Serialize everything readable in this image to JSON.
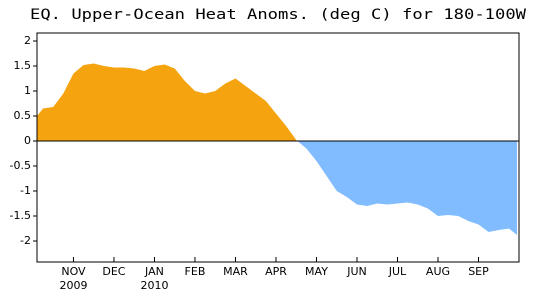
{
  "chart_data": {
    "type": "area",
    "title": "EQ. Upper-Ocean Heat Anoms. (deg C) for 180-100W",
    "positive_color": "#f5a30f",
    "negative_color": "#80bcff",
    "x": [
      0.1,
      0.25,
      0.5,
      0.75,
      1.0,
      1.25,
      1.5,
      1.75,
      2.0,
      2.25,
      2.5,
      2.75,
      3.0,
      3.25,
      3.5,
      3.75,
      4.0,
      4.25,
      4.5,
      4.75,
      5.0,
      5.25,
      5.5,
      5.75,
      6.0,
      6.25,
      6.5,
      6.75,
      7.0,
      7.25,
      7.5,
      7.75,
      8.0,
      8.25,
      8.5,
      8.75,
      9.0,
      9.25,
      9.5,
      9.75,
      10.0,
      10.25,
      10.5,
      10.75,
      11.0,
      11.25,
      11.5,
      11.75,
      11.95
    ],
    "values": [
      0.5,
      0.65,
      0.68,
      0.95,
      1.35,
      1.52,
      1.55,
      1.5,
      1.47,
      1.47,
      1.45,
      1.4,
      1.5,
      1.53,
      1.45,
      1.2,
      1.0,
      0.95,
      1.0,
      1.15,
      1.25,
      1.1,
      0.95,
      0.8,
      0.55,
      0.3,
      0.02,
      -0.15,
      -0.4,
      -0.7,
      -1.0,
      -1.12,
      -1.27,
      -1.3,
      -1.25,
      -1.27,
      -1.25,
      -1.23,
      -1.27,
      -1.35,
      -1.5,
      -1.48,
      -1.5,
      -1.6,
      -1.67,
      -1.82,
      -1.78,
      -1.75,
      -1.88
    ],
    "xlim": [
      0.1,
      12.0
    ],
    "ylim": [
      -2.42,
      2.16
    ],
    "yticks": [
      -2,
      -1.5,
      -1,
      -0.5,
      0,
      0.5,
      1,
      1.5,
      2
    ],
    "xticks": [
      {
        "value": 1,
        "label": "NOV"
      },
      {
        "value": 2,
        "label": "DEC"
      },
      {
        "value": 3,
        "label": "JAN"
      },
      {
        "value": 4,
        "label": "FEB"
      },
      {
        "value": 5,
        "label": "MAR"
      },
      {
        "value": 6,
        "label": "APR"
      },
      {
        "value": 7,
        "label": "MAY"
      },
      {
        "value": 8,
        "label": "JUN"
      },
      {
        "value": 9,
        "label": "JUL"
      },
      {
        "value": 10,
        "label": "AUG"
      },
      {
        "value": 11,
        "label": "SEP"
      }
    ],
    "xtick_years": [
      {
        "value": 1,
        "label": "2009"
      },
      {
        "value": 3,
        "label": "2010"
      }
    ]
  }
}
